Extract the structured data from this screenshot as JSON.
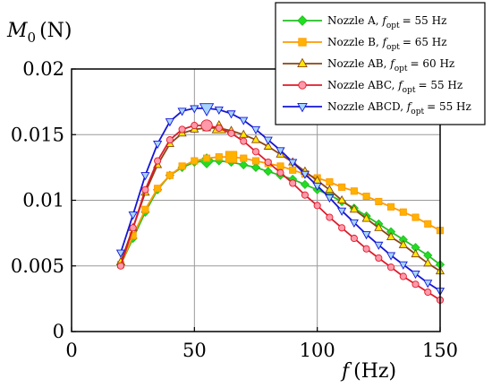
{
  "chart_data": {
    "type": "line",
    "title": "",
    "xlabel": {
      "symbol": "f",
      "unit": "(Hz)"
    },
    "ylabel": {
      "symbol": "M",
      "subscript": "0",
      "unit": "(N)"
    },
    "xlim": [
      0,
      150
    ],
    "ylim": [
      0,
      0.02
    ],
    "xticks": [
      0,
      50,
      100,
      150
    ],
    "xtick_labels": [
      "0",
      "50",
      "100",
      "150"
    ],
    "yticks": [
      0,
      0.005,
      0.01,
      0.015,
      0.02
    ],
    "ytick_labels": [
      "0",
      "0.005",
      "0.01",
      "0.015",
      "0.02"
    ],
    "grid": true,
    "legend_position": "top-right",
    "x": [
      20,
      25,
      30,
      35,
      40,
      45,
      50,
      55,
      60,
      65,
      70,
      75,
      80,
      85,
      90,
      95,
      100,
      105,
      110,
      115,
      120,
      125,
      130,
      135,
      140,
      145,
      150
    ],
    "series": [
      {
        "name": "Nozzle A",
        "label_prefix": "Nozzle A, ",
        "fopt_value": "= 55 Hz",
        "color": "#22c022",
        "fill": "#22dd22",
        "marker": "diamond",
        "optimum_x": 55,
        "optimum_y": 0.013,
        "values": [
          0.0051,
          0.0071,
          0.0091,
          0.0108,
          0.0119,
          0.0125,
          0.0129,
          0.013,
          0.013,
          0.0129,
          0.0127,
          0.0125,
          0.0122,
          0.0119,
          0.0116,
          0.0112,
          0.0108,
          0.0104,
          0.0099,
          0.0094,
          0.0088,
          0.0082,
          0.0076,
          0.007,
          0.0064,
          0.0058,
          0.0051
        ]
      },
      {
        "name": "Nozzle B",
        "label_prefix": "Nozzle B, ",
        "fopt_value": "= 65 Hz",
        "color": "#ff9a00",
        "fill": "#ffb300",
        "marker": "square",
        "optimum_x": 65,
        "optimum_y": 0.0133,
        "values": [
          0.0051,
          0.0073,
          0.0093,
          0.0109,
          0.0119,
          0.0126,
          0.013,
          0.0132,
          0.0133,
          0.0133,
          0.0132,
          0.013,
          0.0128,
          0.0126,
          0.0123,
          0.012,
          0.0117,
          0.0114,
          0.011,
          0.0107,
          0.0103,
          0.0099,
          0.0095,
          0.0091,
          0.0087,
          0.0082,
          0.0077
        ]
      },
      {
        "name": "Nozzle AB",
        "label_prefix": "Nozzle AB, ",
        "fopt_value": "= 60 Hz",
        "color": "#8b4513",
        "fill": "#ffe800",
        "marker": "triangle-up",
        "optimum_x": 60,
        "optimum_y": 0.0155,
        "values": [
          0.0053,
          0.0079,
          0.0106,
          0.0127,
          0.0143,
          0.0151,
          0.0154,
          0.0155,
          0.0155,
          0.0153,
          0.015,
          0.0146,
          0.0141,
          0.0135,
          0.0129,
          0.0122,
          0.0115,
          0.0108,
          0.01,
          0.0093,
          0.0086,
          0.0079,
          0.0072,
          0.0066,
          0.0059,
          0.0052,
          0.0046
        ]
      },
      {
        "name": "Nozzle ABC",
        "label_prefix": "Nozzle ABC, ",
        "fopt_value": "= 55 Hz",
        "color": "#e01a2a",
        "fill": "#ff9aaa",
        "marker": "circle",
        "optimum_x": 55,
        "optimum_y": 0.0157,
        "values": [
          0.005,
          0.0079,
          0.0108,
          0.013,
          0.0146,
          0.0154,
          0.0157,
          0.0157,
          0.0155,
          0.0151,
          0.0145,
          0.0137,
          0.0129,
          0.0121,
          0.0113,
          0.0104,
          0.0096,
          0.0087,
          0.0079,
          0.0071,
          0.0063,
          0.0056,
          0.0049,
          0.0042,
          0.0036,
          0.003,
          0.0024
        ]
      },
      {
        "name": "Nozzle ABCD",
        "label_prefix": "Nozzle ABCD, ",
        "fopt_value": "= 55 Hz",
        "color": "#1515d8",
        "fill": "#a5d5ff",
        "marker": "triangle-down",
        "optimum_x": 55,
        "optimum_y": 0.017,
        "values": [
          0.006,
          0.0089,
          0.0119,
          0.0143,
          0.016,
          0.0168,
          0.017,
          0.017,
          0.0169,
          0.0166,
          0.0161,
          0.0154,
          0.0146,
          0.0138,
          0.0129,
          0.012,
          0.0111,
          0.0102,
          0.0092,
          0.0083,
          0.0074,
          0.0066,
          0.0058,
          0.0051,
          0.0044,
          0.0037,
          0.0031
        ]
      }
    ],
    "legend_fopt_symbol": "f",
    "legend_fopt_subscript": "opt"
  }
}
